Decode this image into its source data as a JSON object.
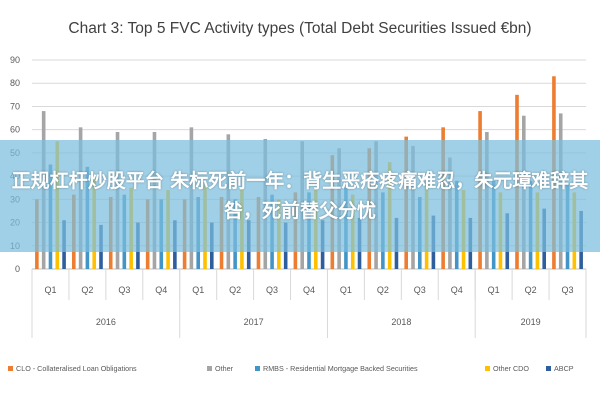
{
  "chart_data": {
    "type": "bar",
    "title": "Chart 3: Top 5 FVC Activity types (Total Debt Securities Issued €bn)",
    "categories": [
      "Q1",
      "Q2",
      "Q3",
      "Q4",
      "Q1",
      "Q2",
      "Q3",
      "Q4",
      "Q1",
      "Q2",
      "Q3",
      "Q4",
      "Q1",
      "Q2",
      "Q3"
    ],
    "groups": [
      {
        "label": "2016",
        "count": 4
      },
      {
        "label": "2017",
        "count": 4
      },
      {
        "label": "2018",
        "count": 4
      },
      {
        "label": "2019",
        "count": 3
      }
    ],
    "ylim": [
      0,
      90
    ],
    "yticks": [
      0,
      10,
      20,
      30,
      40,
      50,
      60,
      70,
      80,
      90
    ],
    "grid": true,
    "legend_position": "bottom",
    "series": [
      {
        "name": "CLO - Collateralised Loan Obligations",
        "color": "#ED7D31",
        "values": [
          30,
          32,
          31,
          30,
          30,
          31,
          31,
          33,
          49,
          52,
          57,
          61,
          68,
          75,
          83
        ]
      },
      {
        "name": "Other",
        "color": "#A5A5A5",
        "values": [
          68,
          61,
          59,
          59,
          61,
          58,
          56,
          55,
          52,
          55,
          53,
          48,
          59,
          66,
          67
        ]
      },
      {
        "name": "RMBS - Residential Mortgage Backed Securities",
        "color": "#4495C7",
        "values": [
          45,
          44,
          32,
          30,
          31,
          30,
          32,
          33,
          35,
          33,
          31,
          38,
          38,
          38,
          37
        ]
      },
      {
        "name": "Other CDO",
        "color": "#FFC000",
        "values": [
          55,
          39,
          35,
          34,
          36,
          34,
          30,
          34,
          32,
          46,
          38,
          34,
          33,
          33,
          33
        ]
      },
      {
        "name": "ABCP",
        "color": "#2E5E9E",
        "values": [
          21,
          19,
          20,
          21,
          20,
          21,
          20,
          21,
          22,
          22,
          23,
          22,
          24,
          26,
          25
        ]
      }
    ]
  },
  "overlay": {
    "text": "正规杠杆炒股平台 朱标死前一年：背生恶疮疼痛难忍，朱元璋难辞其咎，死前替父分忧"
  }
}
